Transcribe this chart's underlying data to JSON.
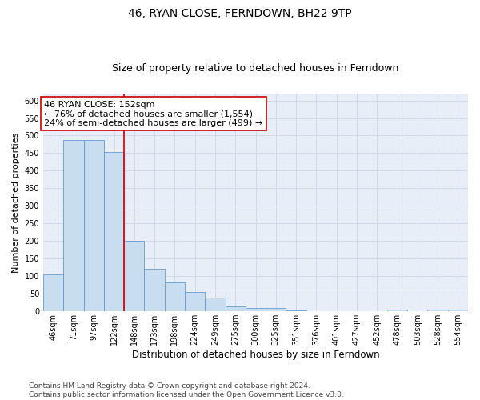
{
  "title": "46, RYAN CLOSE, FERNDOWN, BH22 9TP",
  "subtitle": "Size of property relative to detached houses in Ferndown",
  "xlabel": "Distribution of detached houses by size in Ferndown",
  "ylabel": "Number of detached properties",
  "categories": [
    "46sqm",
    "71sqm",
    "97sqm",
    "122sqm",
    "148sqm",
    "173sqm",
    "198sqm",
    "224sqm",
    "249sqm",
    "275sqm",
    "300sqm",
    "325sqm",
    "351sqm",
    "376sqm",
    "401sqm",
    "427sqm",
    "452sqm",
    "478sqm",
    "503sqm",
    "528sqm",
    "554sqm"
  ],
  "values": [
    105,
    487,
    487,
    453,
    201,
    120,
    82,
    55,
    40,
    14,
    9,
    10,
    3,
    1,
    1,
    0,
    0,
    5,
    0,
    6,
    6
  ],
  "bar_color": "#c8ddef",
  "bar_edge_color": "#6699cc",
  "grid_color": "#d0d9e8",
  "background_color": "#e8eef8",
  "vline_color": "#cc0000",
  "vline_x_index": 3.5,
  "annotation_text": "46 RYAN CLOSE: 152sqm\n← 76% of detached houses are smaller (1,554)\n24% of semi-detached houses are larger (499) →",
  "annotation_box_color": "#ffffff",
  "annotation_box_edge": "#cc0000",
  "ylim": [
    0,
    620
  ],
  "yticks": [
    0,
    50,
    100,
    150,
    200,
    250,
    300,
    350,
    400,
    450,
    500,
    550,
    600
  ],
  "footer": "Contains HM Land Registry data © Crown copyright and database right 2024.\nContains public sector information licensed under the Open Government Licence v3.0.",
  "title_fontsize": 10,
  "subtitle_fontsize": 9,
  "xlabel_fontsize": 8.5,
  "ylabel_fontsize": 8,
  "annotation_fontsize": 8,
  "footer_fontsize": 6.5,
  "tick_fontsize": 7
}
